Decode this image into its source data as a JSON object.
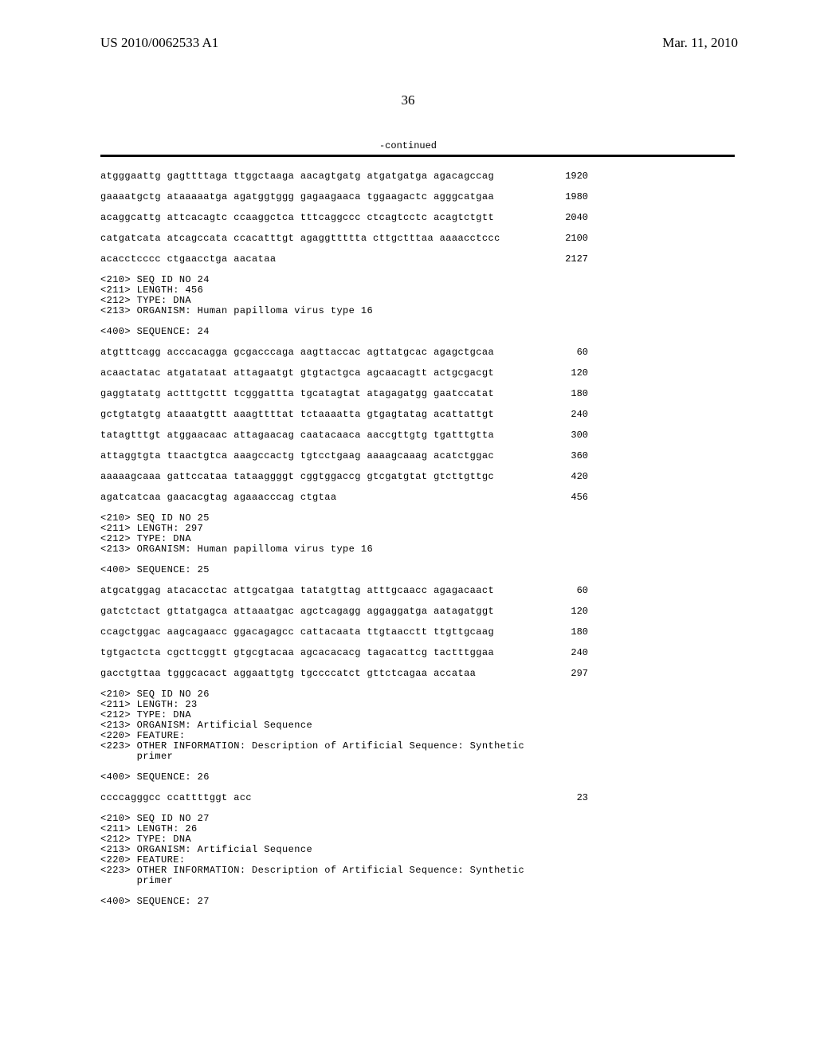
{
  "header": {
    "left": "US 2010/0062533 A1",
    "right": "Mar. 11, 2010"
  },
  "page_number": "36",
  "continued_label": "-continued",
  "blocks": [
    {
      "type": "sequence_lines",
      "lines": [
        {
          "seq": "atgggaattg gagttttaga ttggctaaga aacagtgatg atgatgatga agacagccag",
          "num": "1920"
        },
        {
          "seq": "gaaaatgctg ataaaaatga agatggtggg gagaagaaca tggaagactc agggcatgaa",
          "num": "1980"
        },
        {
          "seq": "acaggcattg attcacagtc ccaaggctca tttcaggccc ctcagtcctc acagtctgtt",
          "num": "2040"
        },
        {
          "seq": "catgatcata atcagccata ccacatttgt agaggttttta cttgctttaa aaaacctccc",
          "num": "2100"
        },
        {
          "seq": "acacctcccc ctgaacctga aacataa",
          "num": "2127"
        }
      ]
    },
    {
      "type": "meta",
      "lines": [
        "<210> SEQ ID NO 24",
        "<211> LENGTH: 456",
        "<212> TYPE: DNA",
        "<213> ORGANISM: Human papilloma virus type 16"
      ]
    },
    {
      "type": "seq_header",
      "text": "<400> SEQUENCE: 24"
    },
    {
      "type": "sequence_lines",
      "lines": [
        {
          "seq": "atgtttcagg acccacagga gcgacccaga aagttaccac agttatgcac agagctgcaa",
          "num": "60"
        },
        {
          "seq": "acaactatac atgatataat attagaatgt gtgtactgca agcaacagtt actgcgacgt",
          "num": "120"
        },
        {
          "seq": "gaggtatatg actttgcttt tcgggattta tgcatagtat atagagatgg gaatccatat",
          "num": "180"
        },
        {
          "seq": "gctgtatgtg ataaatgttt aaagttttat tctaaaatta gtgagtatag acattattgt",
          "num": "240"
        },
        {
          "seq": "tatagtttgt atggaacaac attagaacag caatacaaca aaccgttgtg tgatttgtta",
          "num": "300"
        },
        {
          "seq": "attaggtgta ttaactgtca aaagccactg tgtcctgaag aaaagcaaag acatctggac",
          "num": "360"
        },
        {
          "seq": "aaaaagcaaa gattccataa tataaggggt cggtggaccg gtcgatgtat gtcttgttgc",
          "num": "420"
        },
        {
          "seq": "agatcatcaa gaacacgtag agaaacccag ctgtaa",
          "num": "456"
        }
      ]
    },
    {
      "type": "meta",
      "lines": [
        "<210> SEQ ID NO 25",
        "<211> LENGTH: 297",
        "<212> TYPE: DNA",
        "<213> ORGANISM: Human papilloma virus type 16"
      ]
    },
    {
      "type": "seq_header",
      "text": "<400> SEQUENCE: 25"
    },
    {
      "type": "sequence_lines",
      "lines": [
        {
          "seq": "atgcatggag atacacctac attgcatgaa tatatgttag atttgcaacc agagacaact",
          "num": "60"
        },
        {
          "seq": "gatctctact gttatgagca attaaatgac agctcagagg aggaggatga aatagatggt",
          "num": "120"
        },
        {
          "seq": "ccagctggac aagcagaacc ggacagagcc cattacaata ttgtaacctt ttgttgcaag",
          "num": "180"
        },
        {
          "seq": "tgtgactcta cgcttcggtt gtgcgtacaa agcacacacg tagacattcg tactttggaa",
          "num": "240"
        },
        {
          "seq": "gacctgttaa tgggcacact aggaattgtg tgccccatct gttctcagaa accataa",
          "num": "297"
        }
      ]
    },
    {
      "type": "meta",
      "lines": [
        "<210> SEQ ID NO 26",
        "<211> LENGTH: 23",
        "<212> TYPE: DNA",
        "<213> ORGANISM: Artificial Sequence",
        "<220> FEATURE:",
        "<223> OTHER INFORMATION: Description of Artificial Sequence: Synthetic",
        "      primer"
      ]
    },
    {
      "type": "seq_header",
      "text": "<400> SEQUENCE: 26"
    },
    {
      "type": "sequence_lines",
      "lines": [
        {
          "seq": "ccccagggcc ccattttggt acc",
          "num": "23"
        }
      ]
    },
    {
      "type": "meta",
      "lines": [
        "<210> SEQ ID NO 27",
        "<211> LENGTH: 26",
        "<212> TYPE: DNA",
        "<213> ORGANISM: Artificial Sequence",
        "<220> FEATURE:",
        "<223> OTHER INFORMATION: Description of Artificial Sequence: Synthetic",
        "      primer"
      ]
    },
    {
      "type": "seq_header",
      "text": "<400> SEQUENCE: 27"
    }
  ]
}
